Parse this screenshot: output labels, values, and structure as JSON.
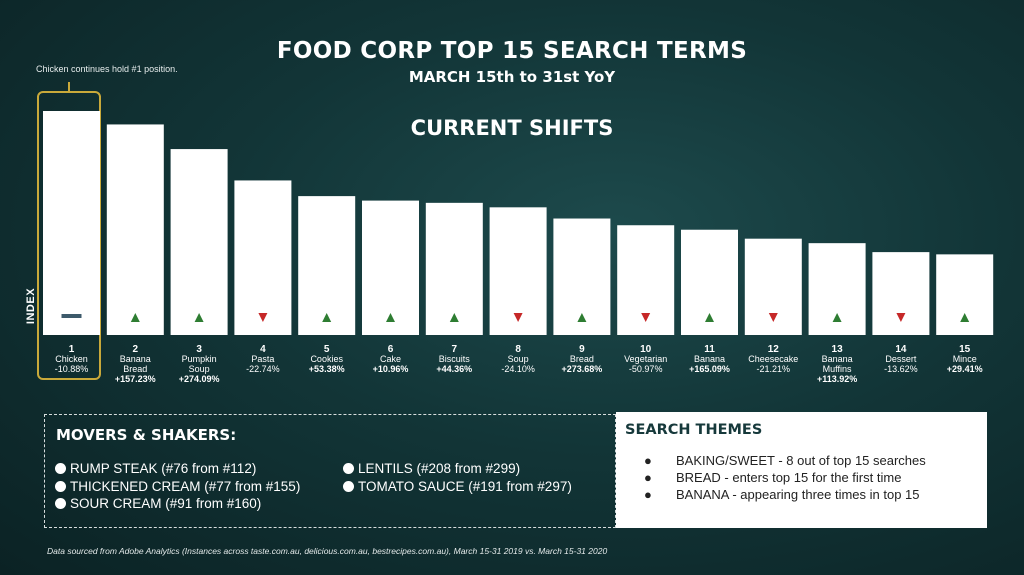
{
  "title": "FOOD CORP TOP 15 SEARCH TERMS",
  "subtitle": "MARCH 15th to 31st YoY",
  "section_heading": "CURRENT SHIFTS",
  "annotation": "Chicken continues hold #1 position.",
  "colors": {
    "background": "#123537",
    "bar": "#ffffff",
    "up": "#2e7d32",
    "down": "#c62828",
    "flat": "#3d5a6b",
    "highlight": "#c9a93a"
  },
  "chart_data": {
    "type": "bar",
    "ylabel": "INDEX",
    "ylim": [
      0,
      100
    ],
    "categories": [
      {
        "rank": "1",
        "name": "Chicken",
        "change": "-10.88%",
        "direction": "flat",
        "bold": false
      },
      {
        "rank": "2",
        "name": "Banana Bread",
        "change": "+157.23%",
        "direction": "up",
        "bold": true
      },
      {
        "rank": "3",
        "name": "Pumpkin Soup",
        "change": "+274.09%",
        "direction": "up",
        "bold": true
      },
      {
        "rank": "4",
        "name": "Pasta",
        "change": "-22.74%",
        "direction": "down",
        "bold": false
      },
      {
        "rank": "5",
        "name": "Cookies",
        "change": "+53.38%",
        "direction": "up",
        "bold": true
      },
      {
        "rank": "6",
        "name": "Cake",
        "change": "+10.96%",
        "direction": "up",
        "bold": true
      },
      {
        "rank": "7",
        "name": "Biscuits",
        "change": "+44.36%",
        "direction": "up",
        "bold": true
      },
      {
        "rank": "8",
        "name": "Soup",
        "change": "-24.10%",
        "direction": "down",
        "bold": false
      },
      {
        "rank": "9",
        "name": "Bread",
        "change": "+273.68%",
        "direction": "up",
        "bold": true
      },
      {
        "rank": "10",
        "name": "Vegetarian",
        "change": "-50.97%",
        "direction": "down",
        "bold": false
      },
      {
        "rank": "11",
        "name": "Banana",
        "change": "+165.09%",
        "direction": "up",
        "bold": true
      },
      {
        "rank": "12",
        "name": "Cheesecake",
        "change": "-21.21%",
        "direction": "down",
        "bold": false
      },
      {
        "rank": "13",
        "name": "Banana Muffins",
        "change": "+113.92%",
        "direction": "up",
        "bold": true
      },
      {
        "rank": "14",
        "name": "Dessert",
        "change": "-13.62%",
        "direction": "down",
        "bold": false
      },
      {
        "rank": "15",
        "name": "Mince",
        "change": "+29.41%",
        "direction": "up",
        "bold": true
      }
    ],
    "values": [
      100,
      94,
      83,
      69,
      62,
      60,
      59,
      57,
      52,
      49,
      47,
      43,
      41,
      37,
      36
    ]
  },
  "movers": {
    "title": "MOVERS & SHAKERS:",
    "items": [
      "RUMP STEAK (#76 from #112)",
      "THICKENED CREAM (#77 from #155)",
      "SOUR CREAM (#91 from #160)",
      "LENTILS (#208 from #299)",
      "TOMATO SAUCE (#191 from #297)"
    ]
  },
  "themes": {
    "title": "SEARCH THEMES",
    "bullet": "●",
    "items": [
      "BAKING/SWEET - 8 out of top 15 searches",
      "BREAD - enters top 15 for the first time",
      "BANANA - appearing three times in top 15"
    ]
  },
  "source": "Data sourced from Adobe Analytics (Instances across taste.com.au, delicious.com.au, bestrecipes.com.au), March 15-31 2019 vs. March 15-31 2020"
}
